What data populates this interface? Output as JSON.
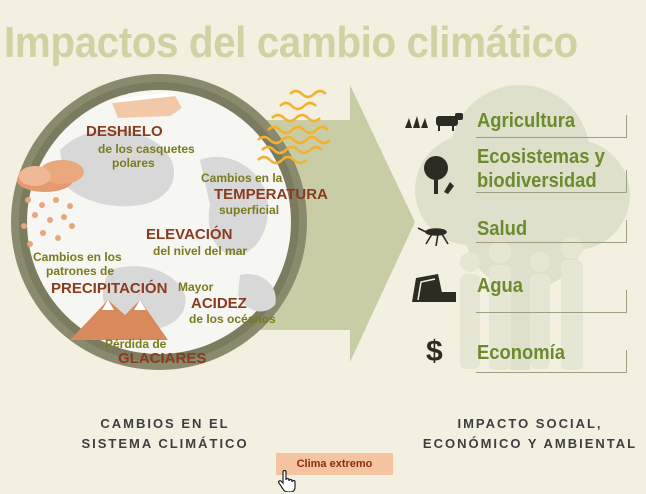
{
  "title": "Impactos del cambio climático",
  "climate_changes": {
    "melting_big": "DESHIELO",
    "melting_small_1": "de los casquetes",
    "melting_small_2": "polares",
    "temp_small": "Cambios en la",
    "temp_big": "TEMPERATURA",
    "temp_small_2": "superficial",
    "sea_big": "ELEVACIÓN",
    "sea_small": "del nivel del mar",
    "precip_small_1": "Cambios en los",
    "precip_small_2": "patrones de",
    "precip_big": "PRECIPITACIÓN",
    "acid_small_1": "Mayor",
    "acid_big": "ACIDEZ",
    "acid_small_2": "de los océanos",
    "glacier_small": "Pérdida de",
    "glacier_big": "GLACIARES"
  },
  "impacts": {
    "agricultura": "Agricultura",
    "ecosistemas_1": "Ecosistemas y",
    "ecosistemas_2": "biodiversidad",
    "salud": "Salud",
    "agua": "Agua",
    "economia": "Economía",
    "dollar_glyph": "$"
  },
  "footer": {
    "left_1": "CAMBIOS EN EL",
    "left_2": "SISTEMA CLIMÁTICO",
    "right_1": "IMPACTO SOCIAL,",
    "right_2": "ECONÓMICO Y AMBIENTAL"
  },
  "button": {
    "label": "Clima extremo"
  },
  "colors": {
    "background": "#f3f0e2",
    "title": "#cfd3a4",
    "ring": "#8a8a6e",
    "arrow": "#c9cda6",
    "impact_text": "#6c8a2e",
    "cause_big": "#8a3a1e",
    "button": "#f4c4a0"
  }
}
